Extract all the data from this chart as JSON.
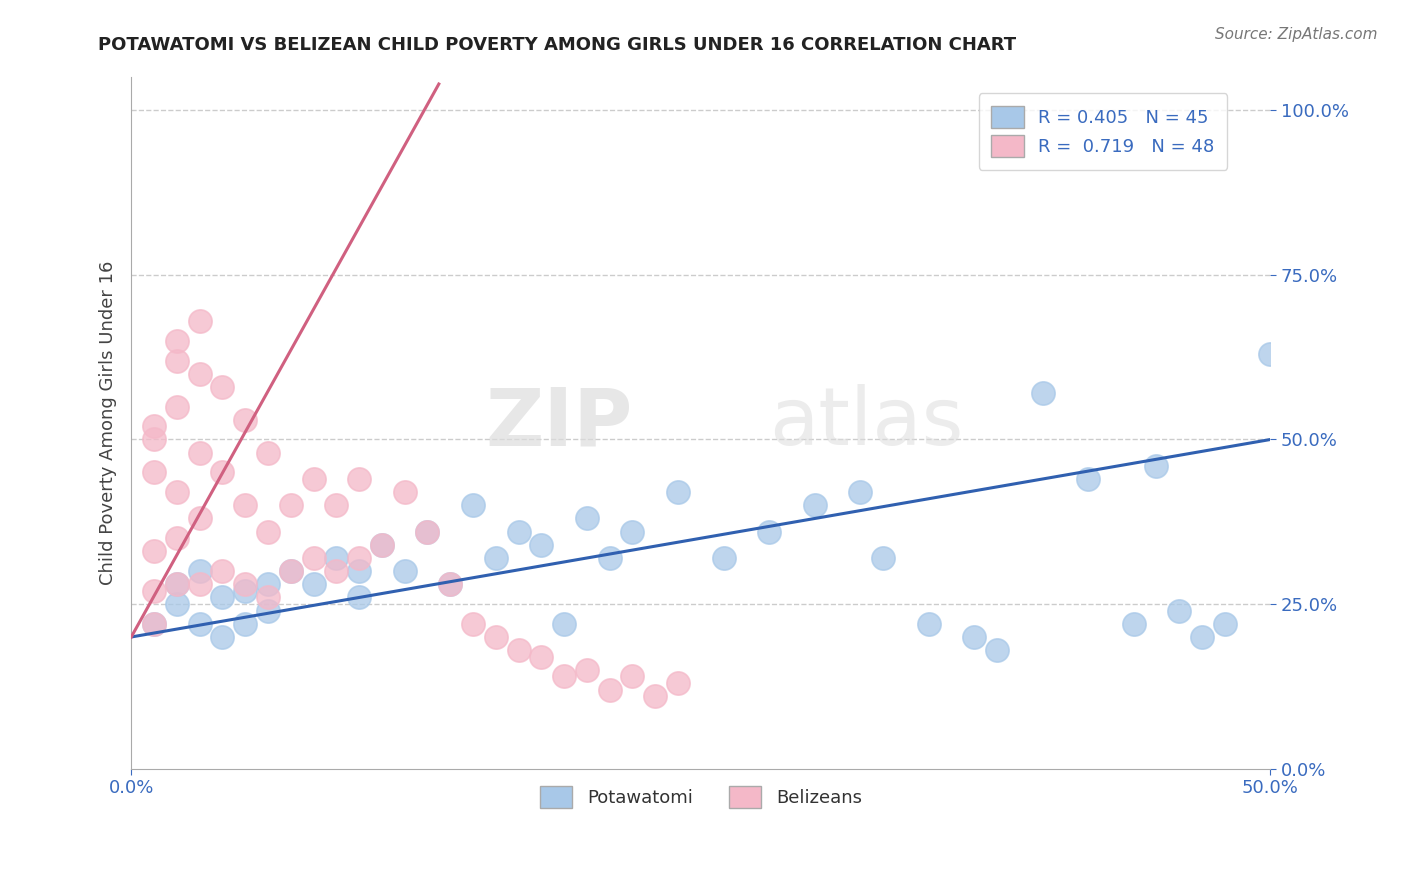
{
  "title": "POTAWATOMI VS BELIZEAN CHILD POVERTY AMONG GIRLS UNDER 16 CORRELATION CHART",
  "source_text": "Source: ZipAtlas.com",
  "ylabel": "Child Poverty Among Girls Under 16",
  "xlim": [
    0.0,
    0.5
  ],
  "ylim": [
    0.0,
    1.05
  ],
  "xticks": [
    0.0,
    0.5
  ],
  "xticklabels": [
    "0.0%",
    "50.0%"
  ],
  "yticks": [
    0.0,
    0.25,
    0.5,
    0.75,
    1.0
  ],
  "yticklabels": [
    "0.0%",
    "25.0%",
    "50.0%",
    "75.0%",
    "100.0%"
  ],
  "blue_R": 0.405,
  "blue_N": 45,
  "pink_R": 0.719,
  "pink_N": 48,
  "blue_color": "#a8c8e8",
  "pink_color": "#f4b8c8",
  "blue_line_color": "#3060b0",
  "pink_line_color": "#d06080",
  "legend_blue_label": "Potawatomi",
  "legend_pink_label": "Belizeans",
  "watermark_zip": "ZIP",
  "watermark_atlas": "atlas",
  "blue_line_x": [
    0.0,
    0.5
  ],
  "blue_line_y": [
    0.2,
    0.5
  ],
  "pink_line_x": [
    0.0,
    0.135
  ],
  "pink_line_y": [
    0.2,
    1.04
  ],
  "blue_scatter_x": [
    0.01,
    0.02,
    0.02,
    0.03,
    0.03,
    0.04,
    0.04,
    0.05,
    0.05,
    0.06,
    0.06,
    0.07,
    0.08,
    0.09,
    0.1,
    0.1,
    0.11,
    0.12,
    0.13,
    0.14,
    0.15,
    0.16,
    0.17,
    0.18,
    0.19,
    0.2,
    0.21,
    0.22,
    0.24,
    0.26,
    0.28,
    0.3,
    0.32,
    0.33,
    0.35,
    0.37,
    0.38,
    0.4,
    0.42,
    0.44,
    0.45,
    0.46,
    0.47,
    0.48,
    0.5
  ],
  "blue_scatter_y": [
    0.22,
    0.28,
    0.25,
    0.3,
    0.22,
    0.26,
    0.2,
    0.27,
    0.22,
    0.28,
    0.24,
    0.3,
    0.28,
    0.32,
    0.3,
    0.26,
    0.34,
    0.3,
    0.36,
    0.28,
    0.4,
    0.32,
    0.36,
    0.34,
    0.22,
    0.38,
    0.32,
    0.36,
    0.42,
    0.32,
    0.36,
    0.4,
    0.42,
    0.32,
    0.22,
    0.2,
    0.18,
    0.57,
    0.44,
    0.22,
    0.46,
    0.24,
    0.2,
    0.22,
    0.63
  ],
  "pink_scatter_x": [
    0.01,
    0.01,
    0.01,
    0.01,
    0.01,
    0.02,
    0.02,
    0.02,
    0.02,
    0.02,
    0.03,
    0.03,
    0.03,
    0.03,
    0.04,
    0.04,
    0.04,
    0.05,
    0.05,
    0.05,
    0.06,
    0.06,
    0.06,
    0.07,
    0.07,
    0.08,
    0.08,
    0.09,
    0.09,
    0.1,
    0.1,
    0.11,
    0.12,
    0.13,
    0.14,
    0.15,
    0.16,
    0.17,
    0.18,
    0.19,
    0.2,
    0.21,
    0.22,
    0.23,
    0.24,
    0.01,
    0.02,
    0.03
  ],
  "pink_scatter_y": [
    0.22,
    0.27,
    0.33,
    0.45,
    0.52,
    0.28,
    0.35,
    0.42,
    0.55,
    0.62,
    0.28,
    0.38,
    0.48,
    0.6,
    0.3,
    0.45,
    0.58,
    0.28,
    0.4,
    0.53,
    0.26,
    0.36,
    0.48,
    0.3,
    0.4,
    0.32,
    0.44,
    0.3,
    0.4,
    0.32,
    0.44,
    0.34,
    0.42,
    0.36,
    0.28,
    0.22,
    0.2,
    0.18,
    0.17,
    0.14,
    0.15,
    0.12,
    0.14,
    0.11,
    0.13,
    0.5,
    0.65,
    0.68
  ]
}
